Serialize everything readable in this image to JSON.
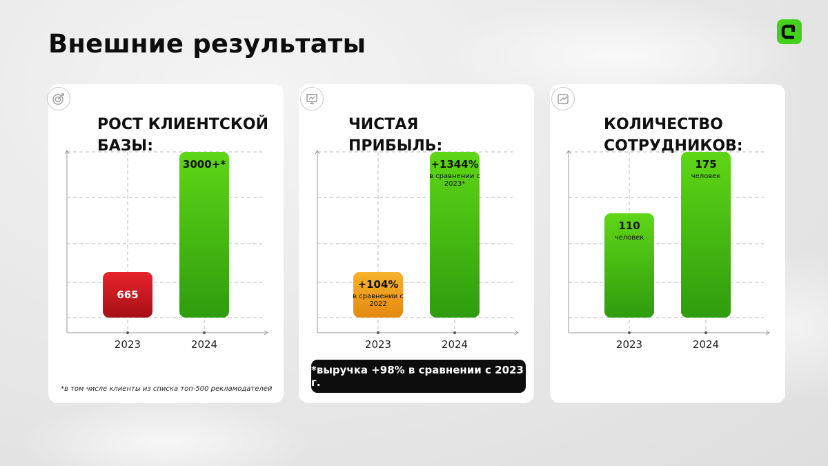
{
  "page": {
    "title": "Внешние результаты"
  },
  "logo_icon": "brand-logo-icon",
  "colors": {
    "green": "#42d21c",
    "red": "#c8161e",
    "orange": "#f0a020",
    "black": "#0d0d0d"
  },
  "cards": [
    {
      "title_line1": "РОСТ КЛИЕНТСКОЙ",
      "title_line2": "БАЗЫ:",
      "icon": "target-icon",
      "footnote": "*в том числе клиенты из списка топ-500 рекламодателей"
    },
    {
      "title_line1": "ЧИСТАЯ",
      "title_line2": "ПРИБЫЛЬ:",
      "icon": "presentation-chart-icon",
      "note": "*выручка +98% в сравнении с 2023 г."
    },
    {
      "title_line1": "КОЛИЧЕСТВО",
      "title_line2": "СОТРУДНИКОВ:",
      "icon": "growth-chart-icon"
    }
  ],
  "chart_data": [
    {
      "type": "bar",
      "categories": [
        "2023",
        "2024"
      ],
      "values": [
        665,
        3000
      ],
      "labels": [
        "665",
        "3000+*"
      ],
      "sublabels": [
        "",
        ""
      ],
      "bar_colors": [
        "red",
        "green"
      ],
      "ylim": [
        0,
        3000
      ],
      "grid": true
    },
    {
      "type": "bar",
      "categories": [
        "2023",
        "2024"
      ],
      "values": [
        104,
        1344
      ],
      "labels": [
        "+104%",
        "+1344%"
      ],
      "sublabels": [
        "в сравнении с 2022",
        "в сравнении с 2023*"
      ],
      "bar_colors": [
        "orange",
        "green"
      ],
      "grid": true
    },
    {
      "type": "bar",
      "categories": [
        "2023",
        "2024"
      ],
      "values": [
        110,
        175
      ],
      "labels": [
        "110",
        "175"
      ],
      "sublabels": [
        "человек",
        "человек"
      ],
      "bar_colors": [
        "green",
        "green"
      ],
      "ylim": [
        0,
        175
      ],
      "grid": true
    }
  ]
}
